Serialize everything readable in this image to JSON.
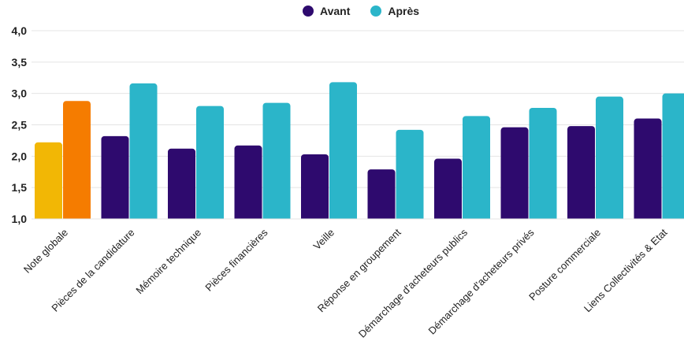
{
  "chart_data": {
    "type": "bar",
    "title": "",
    "xlabel": "",
    "ylabel": "",
    "ylim": [
      1.0,
      4.0
    ],
    "y_ticks": [
      "1,0",
      "1,5",
      "2,0",
      "2,5",
      "3,0",
      "3,5",
      "4,0"
    ],
    "y_tick_values": [
      1.0,
      1.5,
      2.0,
      2.5,
      3.0,
      3.5,
      4.0
    ],
    "grid": true,
    "legend_position": "top-center",
    "categories": [
      "Note globale",
      "Pièces de la candidature",
      "Mémoire technique",
      "Pièces financières",
      "Veille",
      "Réponse en groupement",
      "Démarchage d'acheteurs publics",
      "Démarchage d'acheteurs privés",
      "Posture commerciale",
      "Liens Collectivités & Etat"
    ],
    "series": [
      {
        "name": "Avant",
        "color": "#2e0a6e",
        "first_bar_color": "#f2b705",
        "values": [
          2.22,
          2.32,
          2.12,
          2.17,
          2.03,
          1.79,
          1.96,
          2.46,
          2.48,
          2.6
        ]
      },
      {
        "name": "Après",
        "color": "#2bb5c9",
        "first_bar_color": "#f57c00",
        "values": [
          2.88,
          3.16,
          2.8,
          2.85,
          3.18,
          2.42,
          2.64,
          2.77,
          2.95,
          3.0
        ]
      }
    ]
  }
}
